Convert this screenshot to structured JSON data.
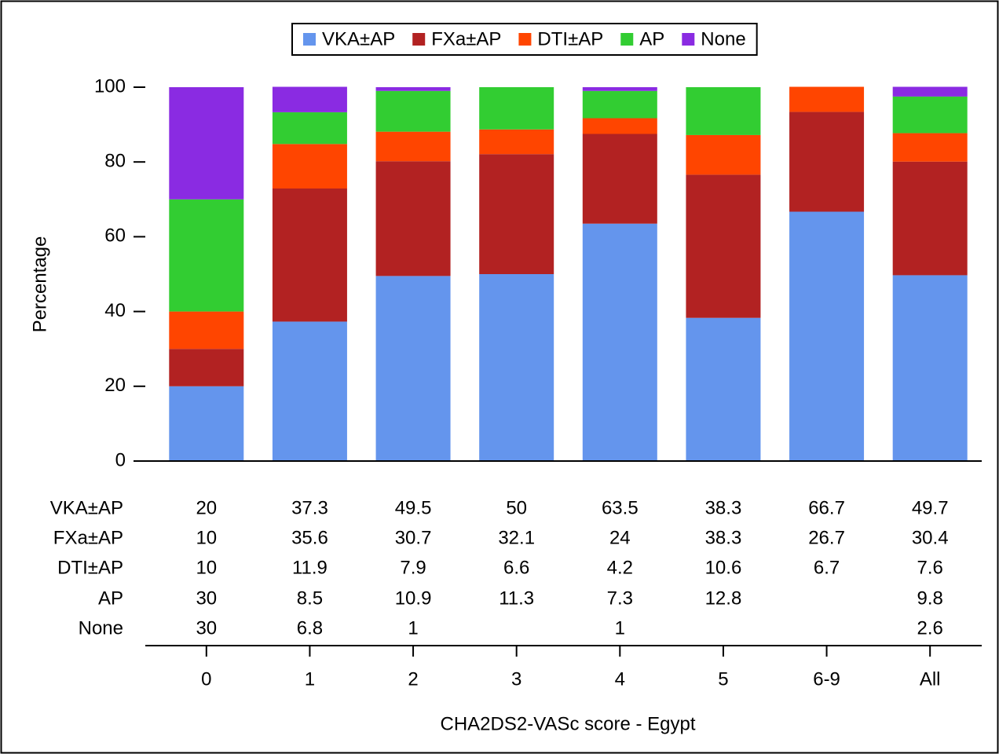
{
  "chart_data": {
    "type": "bar",
    "stacked": true,
    "y_label": "Percentage",
    "x_label": "CHA2DS2-VASc score - Egypt",
    "categories": [
      "0",
      "1",
      "2",
      "3",
      "4",
      "5",
      "6-9",
      "All"
    ],
    "ylim": [
      0,
      100
    ],
    "yticks": [
      0,
      20,
      40,
      60,
      80,
      100
    ],
    "series": [
      {
        "name": "VKA±AP",
        "color": "#6495ed",
        "values": [
          20,
          37.3,
          49.5,
          50,
          63.5,
          38.3,
          66.7,
          49.7
        ]
      },
      {
        "name": "FXa±AP",
        "color": "#b22222",
        "values": [
          10,
          35.6,
          30.7,
          32.1,
          24,
          38.3,
          26.7,
          30.4
        ]
      },
      {
        "name": "DTI±AP",
        "color": "#ff4500",
        "values": [
          10,
          11.9,
          7.9,
          6.6,
          4.2,
          10.6,
          6.7,
          7.6
        ]
      },
      {
        "name": "AP",
        "color": "#32cd32",
        "values": [
          30,
          8.5,
          10.9,
          11.3,
          7.3,
          12.8,
          null,
          9.8
        ]
      },
      {
        "name": "None",
        "color": "#8a2be2",
        "values": [
          30,
          6.8,
          1,
          null,
          1,
          null,
          null,
          2.6
        ]
      }
    ]
  }
}
